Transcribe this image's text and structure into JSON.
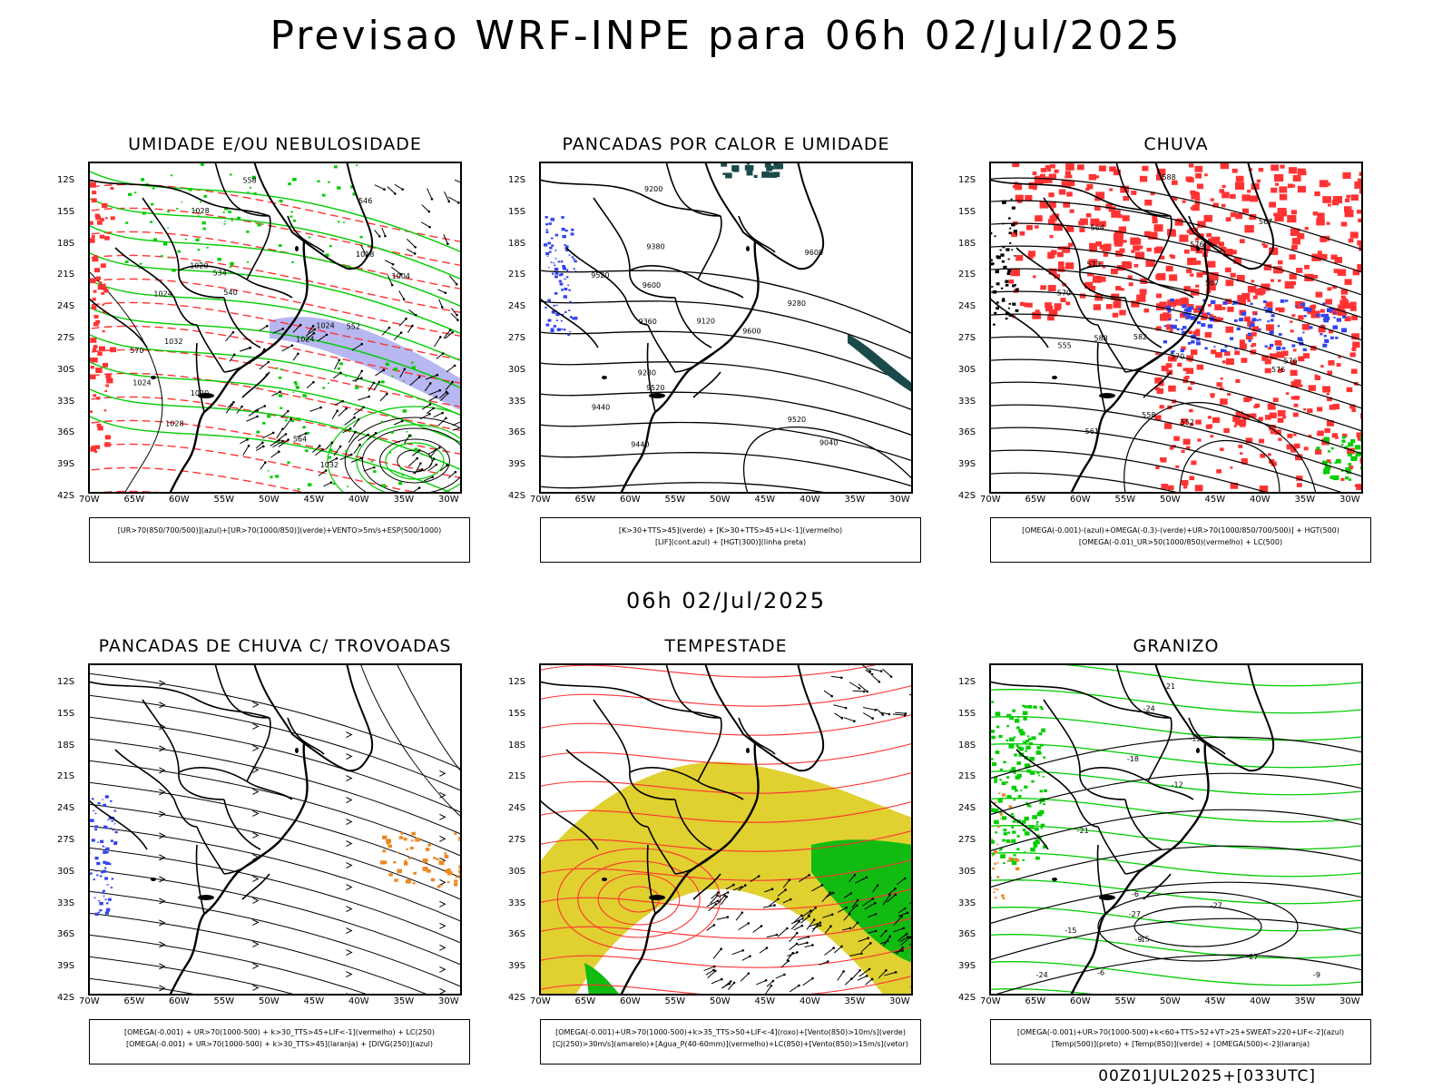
{
  "page": {
    "title": "Previsao WRF-INPE  para 06h 02/Jul/2025",
    "subtitle": "06h 02/Jul/2025",
    "footer": "00Z01JUL2025+[033UTC]"
  },
  "axes": {
    "lat_labels": [
      "12S",
      "15S",
      "18S",
      "21S",
      "24S",
      "27S",
      "30S",
      "33S",
      "36S",
      "39S",
      "42S"
    ],
    "lon_labels": [
      "70W",
      "65W",
      "60W",
      "55W",
      "50W",
      "45W",
      "40W",
      "35W",
      "30W"
    ]
  },
  "colors": {
    "green": "#00cc00",
    "red": "#ff3333",
    "blue": "#3344ee",
    "lavender": "#aaaaee",
    "yellow": "#e0d030",
    "orange": "#ee8822",
    "teal": "#1a4a4a",
    "bright_green": "#11bb11"
  },
  "panels": [
    {
      "id": "umidade",
      "title": "UMIDADE E/OU NEBULOSIDADE",
      "legend": [
        "[UR>70(850/700/500)](azul)+[UR>70(1000/850)](verde)+VENTO>5m/s+ESP(500/1000)"
      ],
      "labels": [
        "1020",
        "1018",
        "570",
        "1020",
        "1024",
        "1024",
        "1028",
        "1032",
        "1032",
        "1028",
        "1024",
        "1024",
        "1004",
        "564",
        "558",
        "552",
        "546",
        "540",
        "534"
      ]
    },
    {
      "id": "pancadas-calor",
      "title": "PANCADAS POR CALOR E UMIDADE",
      "legend": [
        "[K>30+TTS>45](verde) + [K>30+TTS>45+LI<-1](vermelho)",
        "[LIF](cont.azul) + [HGT(300)](linha preta)"
      ],
      "labels": [
        "9600",
        "9600",
        "9520",
        "9520",
        "9440",
        "9360",
        "9440",
        "9380",
        "9280",
        "9200",
        "9120",
        "9040",
        "9280",
        "9600",
        "9520"
      ]
    },
    {
      "id": "chuva",
      "title": "CHUVA",
      "legend": [
        "[OMEGA(-0.001)-(azul)+OMEGA(-0.3)-(verde)+UR>70(1000/850/700/500)] + HGT(500)",
        "[OMEGA(-0.01)_UR>50(1000/850)(vermelho) + LC(500)"
      ],
      "labels": [
        "588",
        "588",
        "582",
        "576",
        "576",
        "570",
        "567",
        "573",
        "561",
        "555",
        "558",
        "552",
        "564",
        "576",
        "567",
        "570"
      ]
    },
    {
      "id": "pancadas-trovoadas",
      "title": "PANCADAS DE CHUVA C/ TROVOADAS",
      "legend": [
        "[OMEGA(-0.001) + UR>70(1000-500) + k>30_TTS>45+LIF<-1](vermelho) + LC(250)",
        "[OMEGA(-0.001) + UR>70(1000-500) + k>30_TTS>45](laranja) + [DIVG(250)](azul)"
      ],
      "labels": []
    },
    {
      "id": "tempestade",
      "title": "TEMPESTADE",
      "legend": [
        "[OMEGA(-0.001)+UR>70(1000-500)+k>35_TTS>50+LIF<-4](roxo)+[Vento(850)>10m/s](verde)",
        "[CJ(250)>30m/s](amarelo)+[Agua_P(40-60mm)](vermelho)+LC(850)+[Vento(850)>15m/s](vetor)"
      ],
      "labels": []
    },
    {
      "id": "granizo",
      "title": "GRANIZO",
      "legend": [
        "[OMEGA(-0.001)+UR>70(1000-500)+k<60+TTS>52+VT>25+SWEAT>220+LIF<-2](azul)",
        "[Temp(500)](preto) + [Temp(850)](verde) + [OMEGA(500)<-2](laranja)"
      ],
      "labels": [
        "-6",
        "-9",
        "-6",
        "-12",
        "-12",
        "-9",
        "-15",
        "-15",
        "-18",
        "-21",
        "-24",
        "-27",
        "-24",
        "-27",
        "-21",
        "-27"
      ]
    }
  ]
}
